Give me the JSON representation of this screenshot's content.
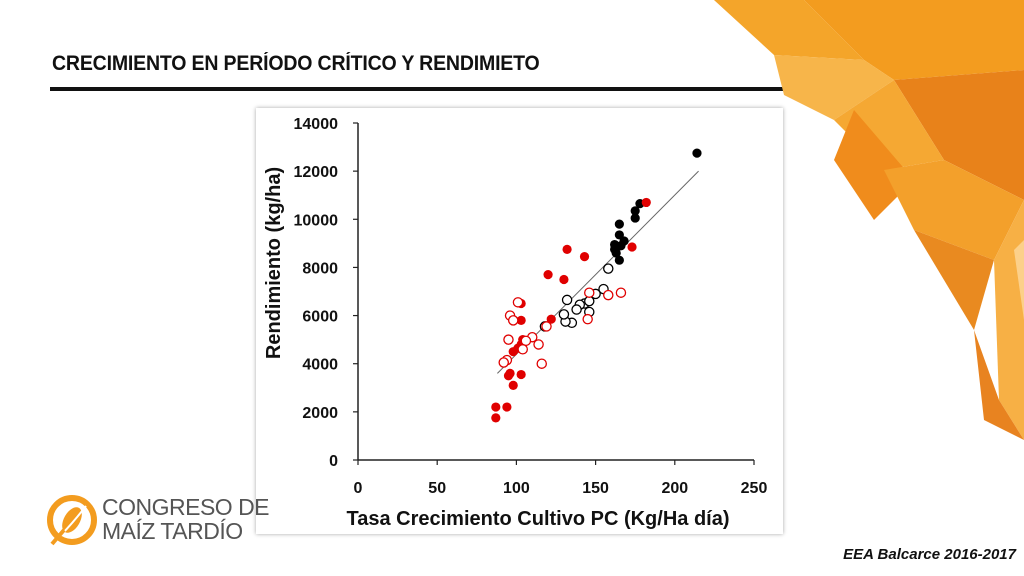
{
  "slide": {
    "title": "CRECIMIENTO EN PERÍODO CRÍTICO Y RENDIMIETO",
    "footer": "EEA Balcarce 2016-2017",
    "logo": {
      "line1": "CONGRESO DE",
      "line2": "MAÍZ TARDÍO",
      "icon": "corn-logo-icon"
    },
    "colors": {
      "accent_orange": "#f39c1f",
      "red_marker": "#e00000",
      "black_marker": "#000000"
    }
  },
  "chart_data": {
    "type": "scatter",
    "xlabel": "Tasa Crecimiento Cultivo PC (Kg/Ha día)",
    "ylabel": "Rendimiento (kg/ha)",
    "xlim": [
      0,
      250
    ],
    "ylim": [
      0,
      14000
    ],
    "xticks": [
      "0",
      "50",
      "100",
      "150",
      "200",
      "250"
    ],
    "yticks": [
      "0",
      "2000",
      "4000",
      "6000",
      "8000",
      "10000",
      "12000",
      "14000"
    ],
    "grid": false,
    "trendline": {
      "x": [
        88,
        215
      ],
      "y": [
        3600,
        12000
      ]
    },
    "series": [
      {
        "color": "#000000",
        "filled": true,
        "points": [
          [
            214,
            12750
          ],
          [
            178,
            10650
          ],
          [
            175,
            10350
          ],
          [
            175,
            10050
          ],
          [
            165,
            9800
          ],
          [
            168,
            9100
          ],
          [
            162,
            8950
          ],
          [
            165,
            9350
          ],
          [
            163,
            8600
          ],
          [
            165,
            8300
          ],
          [
            162,
            8750
          ],
          [
            166,
            8900
          ]
        ]
      },
      {
        "color": "#000000",
        "filled": false,
        "points": [
          [
            158,
            7950
          ],
          [
            155,
            7100
          ],
          [
            150,
            6900
          ],
          [
            146,
            6150
          ],
          [
            143,
            6500
          ],
          [
            140,
            6450
          ],
          [
            138,
            6250
          ],
          [
            132,
            6650
          ],
          [
            135,
            5700
          ],
          [
            131,
            5750
          ],
          [
            130,
            6050
          ],
          [
            118,
            5550
          ],
          [
            146,
            6600
          ]
        ]
      },
      {
        "color": "#e00000",
        "filled": true,
        "points": [
          [
            182,
            10700
          ],
          [
            173,
            8850
          ],
          [
            143,
            8450
          ],
          [
            132,
            8750
          ],
          [
            130,
            7500
          ],
          [
            120,
            7700
          ],
          [
            122,
            5850
          ],
          [
            103,
            6500
          ],
          [
            103,
            5800
          ],
          [
            104,
            5000
          ],
          [
            103,
            4800
          ],
          [
            101,
            4650
          ],
          [
            98,
            4500
          ],
          [
            96,
            3600
          ],
          [
            95,
            3500
          ],
          [
            98,
            3100
          ],
          [
            103,
            3550
          ],
          [
            87,
            2200
          ],
          [
            94,
            2200
          ],
          [
            87,
            1750
          ]
        ]
      },
      {
        "color": "#e00000",
        "filled": false,
        "points": [
          [
            166,
            6950
          ],
          [
            158,
            6850
          ],
          [
            146,
            6950
          ],
          [
            145,
            5850
          ],
          [
            119,
            5550
          ],
          [
            114,
            4800
          ],
          [
            110,
            5100
          ],
          [
            106,
            4950
          ],
          [
            104,
            4600
          ],
          [
            96,
            6000
          ],
          [
            98,
            5800
          ],
          [
            101,
            6550
          ],
          [
            95,
            5000
          ],
          [
            94,
            4150
          ],
          [
            92,
            4050
          ],
          [
            116,
            4000
          ]
        ]
      }
    ]
  }
}
